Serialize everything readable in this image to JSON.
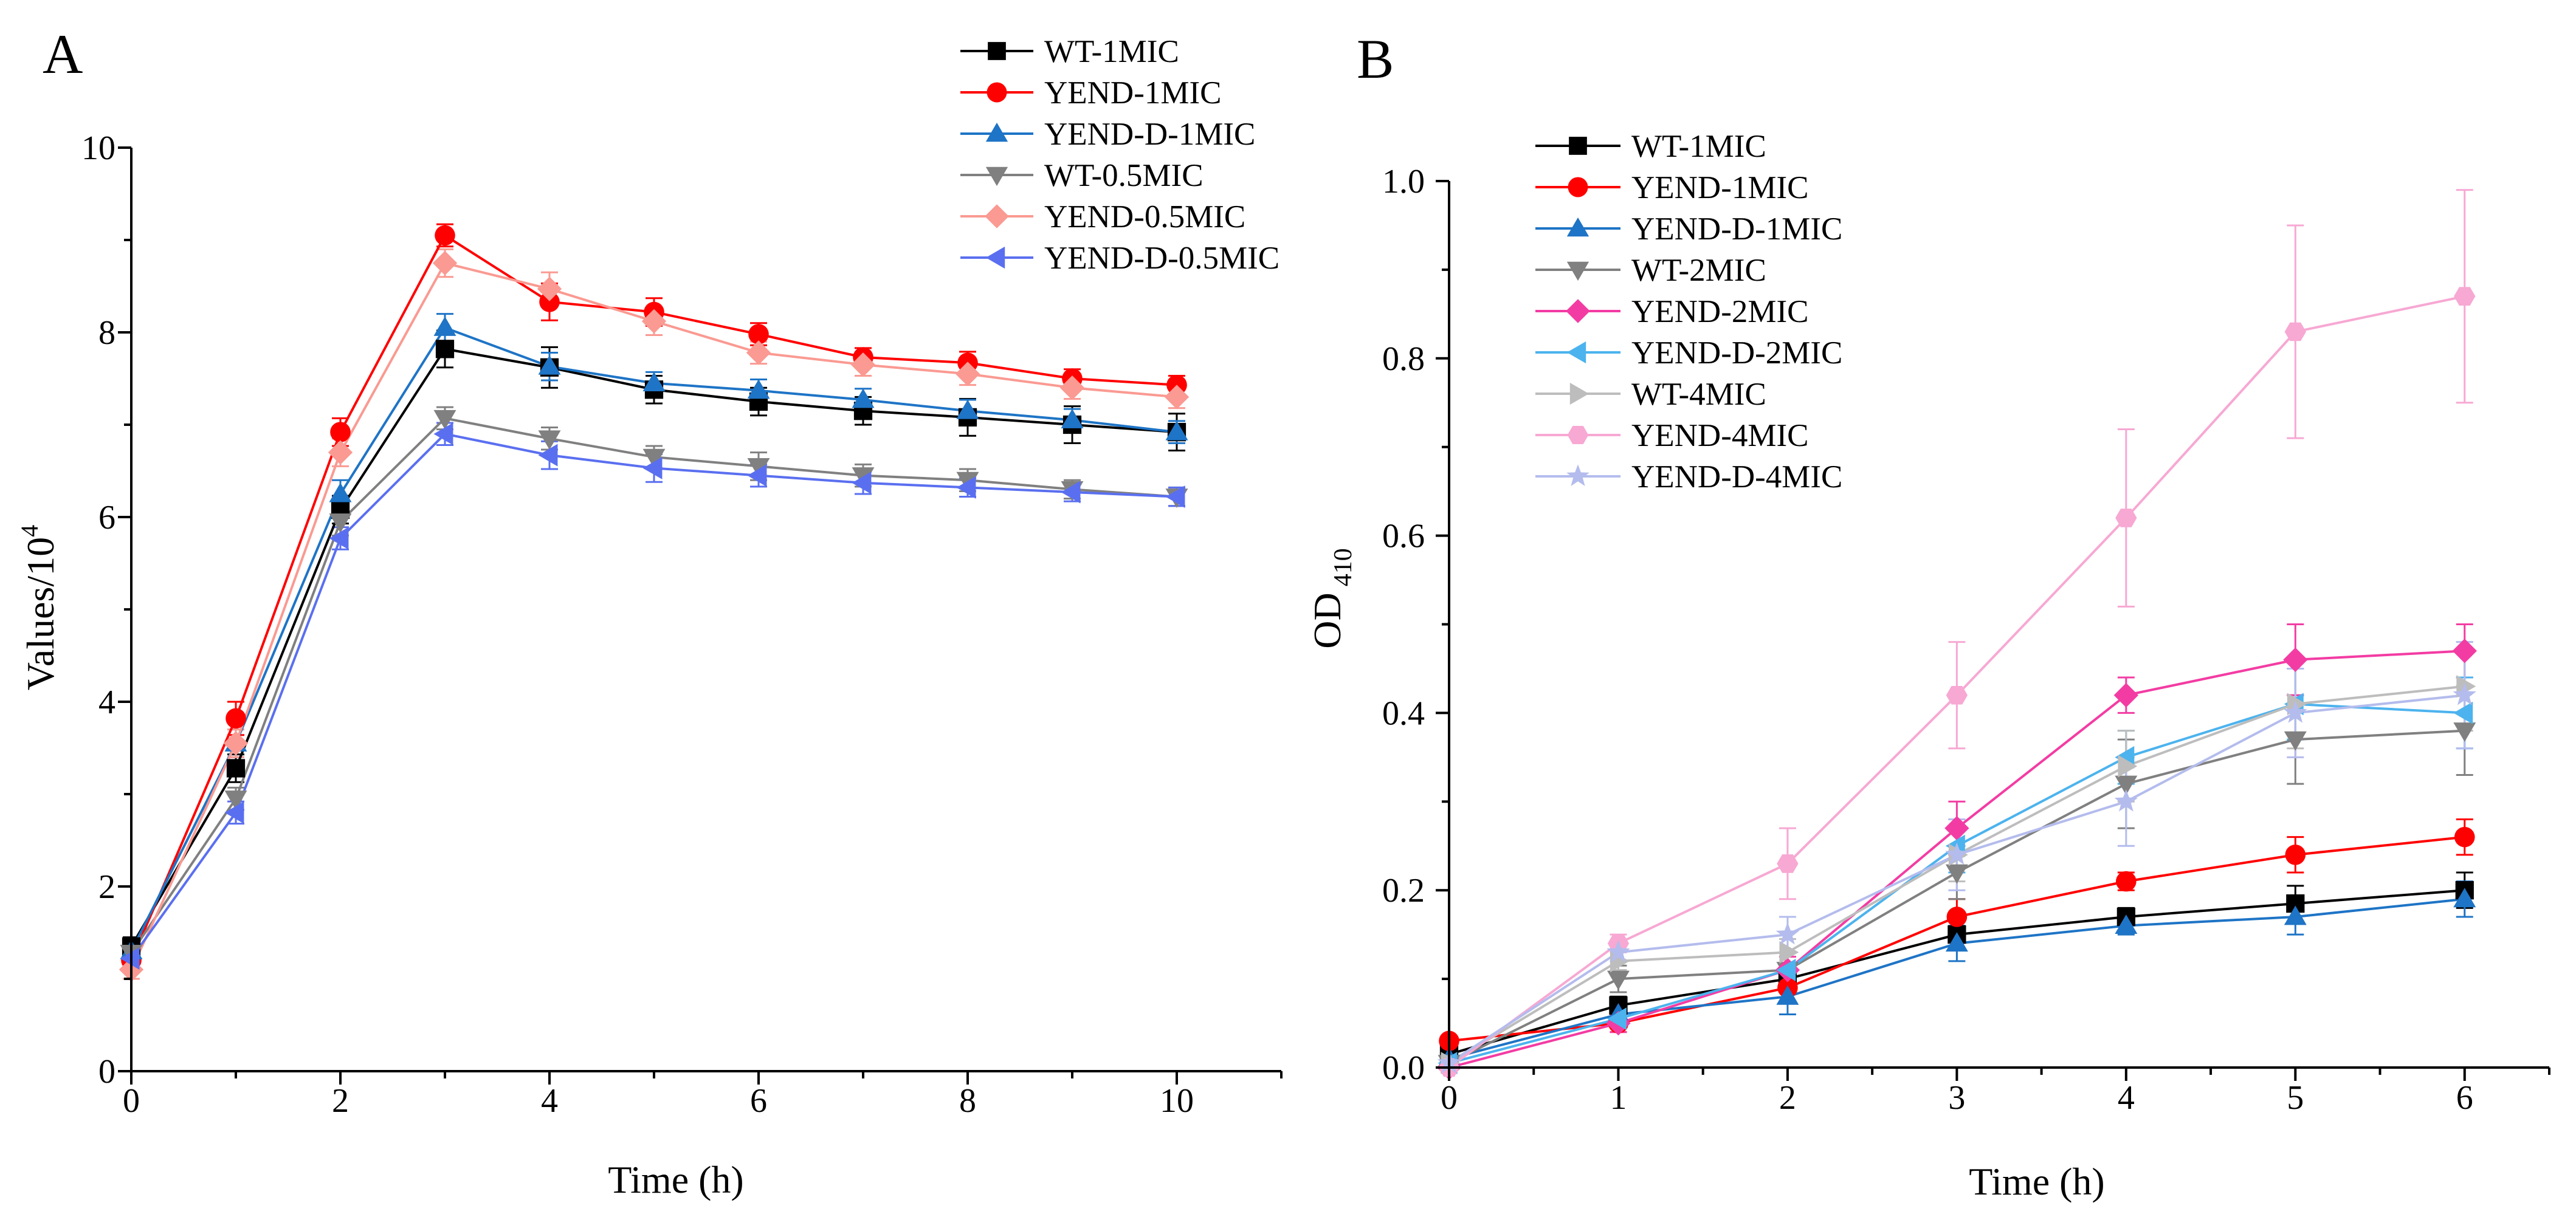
{
  "chart_data": [
    {
      "panel_label": "A",
      "type": "line",
      "title": "",
      "xlabel": "Time (h)",
      "ylabel": {
        "base": "Values/10",
        "sup": "4"
      },
      "xlim": [
        0,
        11
      ],
      "ylim": [
        0,
        10
      ],
      "xticks": [
        0,
        2,
        4,
        6,
        8,
        10
      ],
      "yticks": [
        0,
        2,
        4,
        6,
        8,
        10
      ],
      "grid": false,
      "legend_position": "top-right",
      "x": [
        0,
        1,
        2,
        3,
        4,
        5,
        6,
        7,
        8,
        9,
        10
      ],
      "series": [
        {
          "name": "WT-1MIC",
          "color": "#000000",
          "marker": "square",
          "values": [
            1.35,
            3.28,
            6.08,
            7.82,
            7.62,
            7.38,
            7.25,
            7.15,
            7.08,
            7.0,
            6.92
          ],
          "errors": [
            0.1,
            0.15,
            0.15,
            0.2,
            0.22,
            0.15,
            0.15,
            0.15,
            0.2,
            0.2,
            0.2
          ]
        },
        {
          "name": "YEND-1MIC",
          "color": "#ff0000",
          "marker": "circle",
          "values": [
            1.2,
            3.82,
            6.92,
            9.05,
            8.33,
            8.22,
            7.98,
            7.73,
            7.67,
            7.5,
            7.43
          ],
          "errors": [
            0.1,
            0.18,
            0.15,
            0.12,
            0.2,
            0.15,
            0.12,
            0.1,
            0.12,
            0.1,
            0.1
          ]
        },
        {
          "name": "YEND-D-1MIC",
          "color": "#1e74c6",
          "marker": "triangle-up",
          "values": [
            1.3,
            3.55,
            6.25,
            8.05,
            7.63,
            7.45,
            7.37,
            7.27,
            7.15,
            7.05,
            6.92
          ],
          "errors": [
            0.1,
            0.15,
            0.15,
            0.15,
            0.15,
            0.12,
            0.12,
            0.12,
            0.12,
            0.12,
            0.12
          ]
        },
        {
          "name": "WT-0.5MIC",
          "color": "#808080",
          "marker": "triangle-down",
          "values": [
            1.28,
            2.95,
            5.95,
            7.07,
            6.85,
            6.65,
            6.55,
            6.45,
            6.4,
            6.3,
            6.22
          ],
          "errors": [
            0.1,
            0.12,
            0.15,
            0.12,
            0.12,
            0.12,
            0.15,
            0.12,
            0.12,
            0.1,
            0.1
          ]
        },
        {
          "name": "YEND-0.5MIC",
          "color": "#fa9a92",
          "marker": "diamond",
          "values": [
            1.1,
            3.55,
            6.7,
            8.75,
            8.47,
            8.12,
            7.78,
            7.65,
            7.55,
            7.4,
            7.3
          ],
          "errors": [
            0.1,
            0.15,
            0.15,
            0.15,
            0.18,
            0.15,
            0.12,
            0.12,
            0.12,
            0.12,
            0.12
          ]
        },
        {
          "name": "YEND-D-0.5MIC",
          "color": "#5a6ff0",
          "marker": "triangle-left",
          "values": [
            1.22,
            2.8,
            5.77,
            6.9,
            6.67,
            6.53,
            6.45,
            6.37,
            6.32,
            6.27,
            6.22
          ],
          "errors": [
            0.1,
            0.12,
            0.12,
            0.12,
            0.15,
            0.15,
            0.12,
            0.12,
            0.1,
            0.1,
            0.1
          ]
        }
      ]
    },
    {
      "panel_label": "B",
      "type": "line",
      "title": "",
      "xlabel": "Time (h)",
      "ylabel": {
        "base": "OD",
        "sub": "410"
      },
      "xlim": [
        0,
        6.5
      ],
      "ylim": [
        0,
        1.0
      ],
      "xticks": [
        0,
        1,
        2,
        3,
        4,
        5,
        6
      ],
      "yticks": [
        0.0,
        0.2,
        0.4,
        0.6,
        0.8,
        1.0
      ],
      "ytick_labels": [
        "0.0",
        "0.2",
        "0.4",
        "0.6",
        "0.8",
        "1.0"
      ],
      "grid": false,
      "legend_position": "top-left",
      "x": [
        0,
        1,
        2,
        3,
        4,
        5,
        6
      ],
      "series": [
        {
          "name": "WT-1MIC",
          "color": "#000000",
          "marker": "square",
          "values": [
            0.015,
            0.07,
            0.1,
            0.15,
            0.17,
            0.185,
            0.2
          ],
          "errors": [
            0.005,
            0.01,
            0.015,
            0.015,
            0.01,
            0.02,
            0.02
          ]
        },
        {
          "name": "YEND-1MIC",
          "color": "#ff0000",
          "marker": "circle",
          "values": [
            0.03,
            0.05,
            0.09,
            0.17,
            0.21,
            0.24,
            0.26
          ],
          "errors": [
            0.005,
            0.01,
            0.015,
            0.02,
            0.01,
            0.02,
            0.02
          ]
        },
        {
          "name": "YEND-D-1MIC",
          "color": "#1e74c6",
          "marker": "triangle-up",
          "values": [
            0.01,
            0.06,
            0.08,
            0.14,
            0.16,
            0.17,
            0.19
          ],
          "errors": [
            0.005,
            0.01,
            0.02,
            0.02,
            0.01,
            0.02,
            0.02
          ]
        },
        {
          "name": "WT-2MIC",
          "color": "#808080",
          "marker": "triangle-down",
          "values": [
            0.005,
            0.1,
            0.11,
            0.22,
            0.32,
            0.37,
            0.38
          ],
          "errors": [
            0.005,
            0.015,
            0.02,
            0.03,
            0.05,
            0.05,
            0.05
          ]
        },
        {
          "name": "YEND-2MIC",
          "color": "#f33ca3",
          "marker": "diamond",
          "values": [
            0.0,
            0.05,
            0.11,
            0.27,
            0.42,
            0.46,
            0.47
          ],
          "errors": [
            0.005,
            0.01,
            0.015,
            0.03,
            0.02,
            0.04,
            0.03
          ]
        },
        {
          "name": "YEND-D-2MIC",
          "color": "#4cb3ee",
          "marker": "triangle-left",
          "values": [
            0.005,
            0.055,
            0.11,
            0.25,
            0.35,
            0.41,
            0.4
          ],
          "errors": [
            0.005,
            0.01,
            0.02,
            0.03,
            0.03,
            0.04,
            0.04
          ]
        },
        {
          "name": "WT-4MIC",
          "color": "#bdbdbd",
          "marker": "triangle-right",
          "values": [
            0.005,
            0.12,
            0.13,
            0.24,
            0.34,
            0.41,
            0.43
          ],
          "errors": [
            0.005,
            0.01,
            0.015,
            0.03,
            0.04,
            0.05,
            0.05
          ]
        },
        {
          "name": "YEND-4MIC",
          "color": "#f7a8d3",
          "marker": "hexagon",
          "values": [
            0.0,
            0.14,
            0.23,
            0.42,
            0.62,
            0.83,
            0.87
          ],
          "errors": [
            0.005,
            0.01,
            0.04,
            0.06,
            0.1,
            0.12,
            0.12
          ]
        },
        {
          "name": "YEND-D-4MIC",
          "color": "#b4bced",
          "marker": "star",
          "values": [
            0.005,
            0.13,
            0.15,
            0.24,
            0.3,
            0.4,
            0.42
          ],
          "errors": [
            0.005,
            0.01,
            0.02,
            0.04,
            0.05,
            0.05,
            0.06
          ]
        }
      ]
    }
  ]
}
